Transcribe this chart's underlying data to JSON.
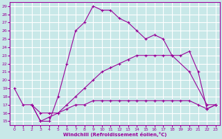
{
  "xlabel": "Windchill (Refroidissement éolien,°C)",
  "xlim": [
    -0.5,
    23.5
  ],
  "ylim": [
    14.5,
    29.5
  ],
  "xticks": [
    0,
    1,
    2,
    3,
    4,
    5,
    6,
    7,
    8,
    9,
    10,
    11,
    12,
    13,
    14,
    15,
    16,
    17,
    18,
    19,
    20,
    21,
    22,
    23
  ],
  "yticks": [
    15,
    16,
    17,
    18,
    19,
    20,
    21,
    22,
    23,
    24,
    25,
    26,
    27,
    28,
    29
  ],
  "bg_color": "#c8e8e8",
  "line_color": "#990099",
  "grid_color": "#ffffff",
  "line1_x": [
    0,
    1,
    2,
    3,
    4,
    5,
    6,
    7,
    8,
    9,
    10,
    11,
    12,
    13,
    14,
    15,
    16,
    17,
    18,
    20,
    22,
    23
  ],
  "line1_y": [
    19,
    17,
    17,
    15,
    15,
    18,
    22,
    26,
    27,
    29,
    28.5,
    28.5,
    27.5,
    27,
    26,
    25,
    25.5,
    25,
    23,
    21,
    17,
    17
  ],
  "line2_x": [
    2,
    3,
    4,
    5,
    6,
    7,
    8,
    9,
    10,
    11,
    12,
    13,
    14,
    15,
    16,
    17,
    18,
    19,
    20,
    21,
    22,
    23
  ],
  "line2_y": [
    17,
    15,
    15.5,
    16,
    17,
    18,
    19,
    20,
    21,
    21.5,
    22,
    22.5,
    23,
    23,
    23,
    23,
    23,
    23,
    23.5,
    21,
    16.5,
    17
  ],
  "line3_x": [
    2,
    3,
    4,
    5,
    6,
    7,
    8,
    9,
    10,
    11,
    12,
    13,
    14,
    15,
    16,
    17,
    18,
    19,
    20,
    21,
    22,
    23
  ],
  "line3_y": [
    17,
    16,
    16,
    16,
    16.5,
    17,
    17,
    17.5,
    17.5,
    17.5,
    17.5,
    17.5,
    17.5,
    17.5,
    17.5,
    17.5,
    17.5,
    17.5,
    17.5,
    17,
    16.5,
    17
  ]
}
